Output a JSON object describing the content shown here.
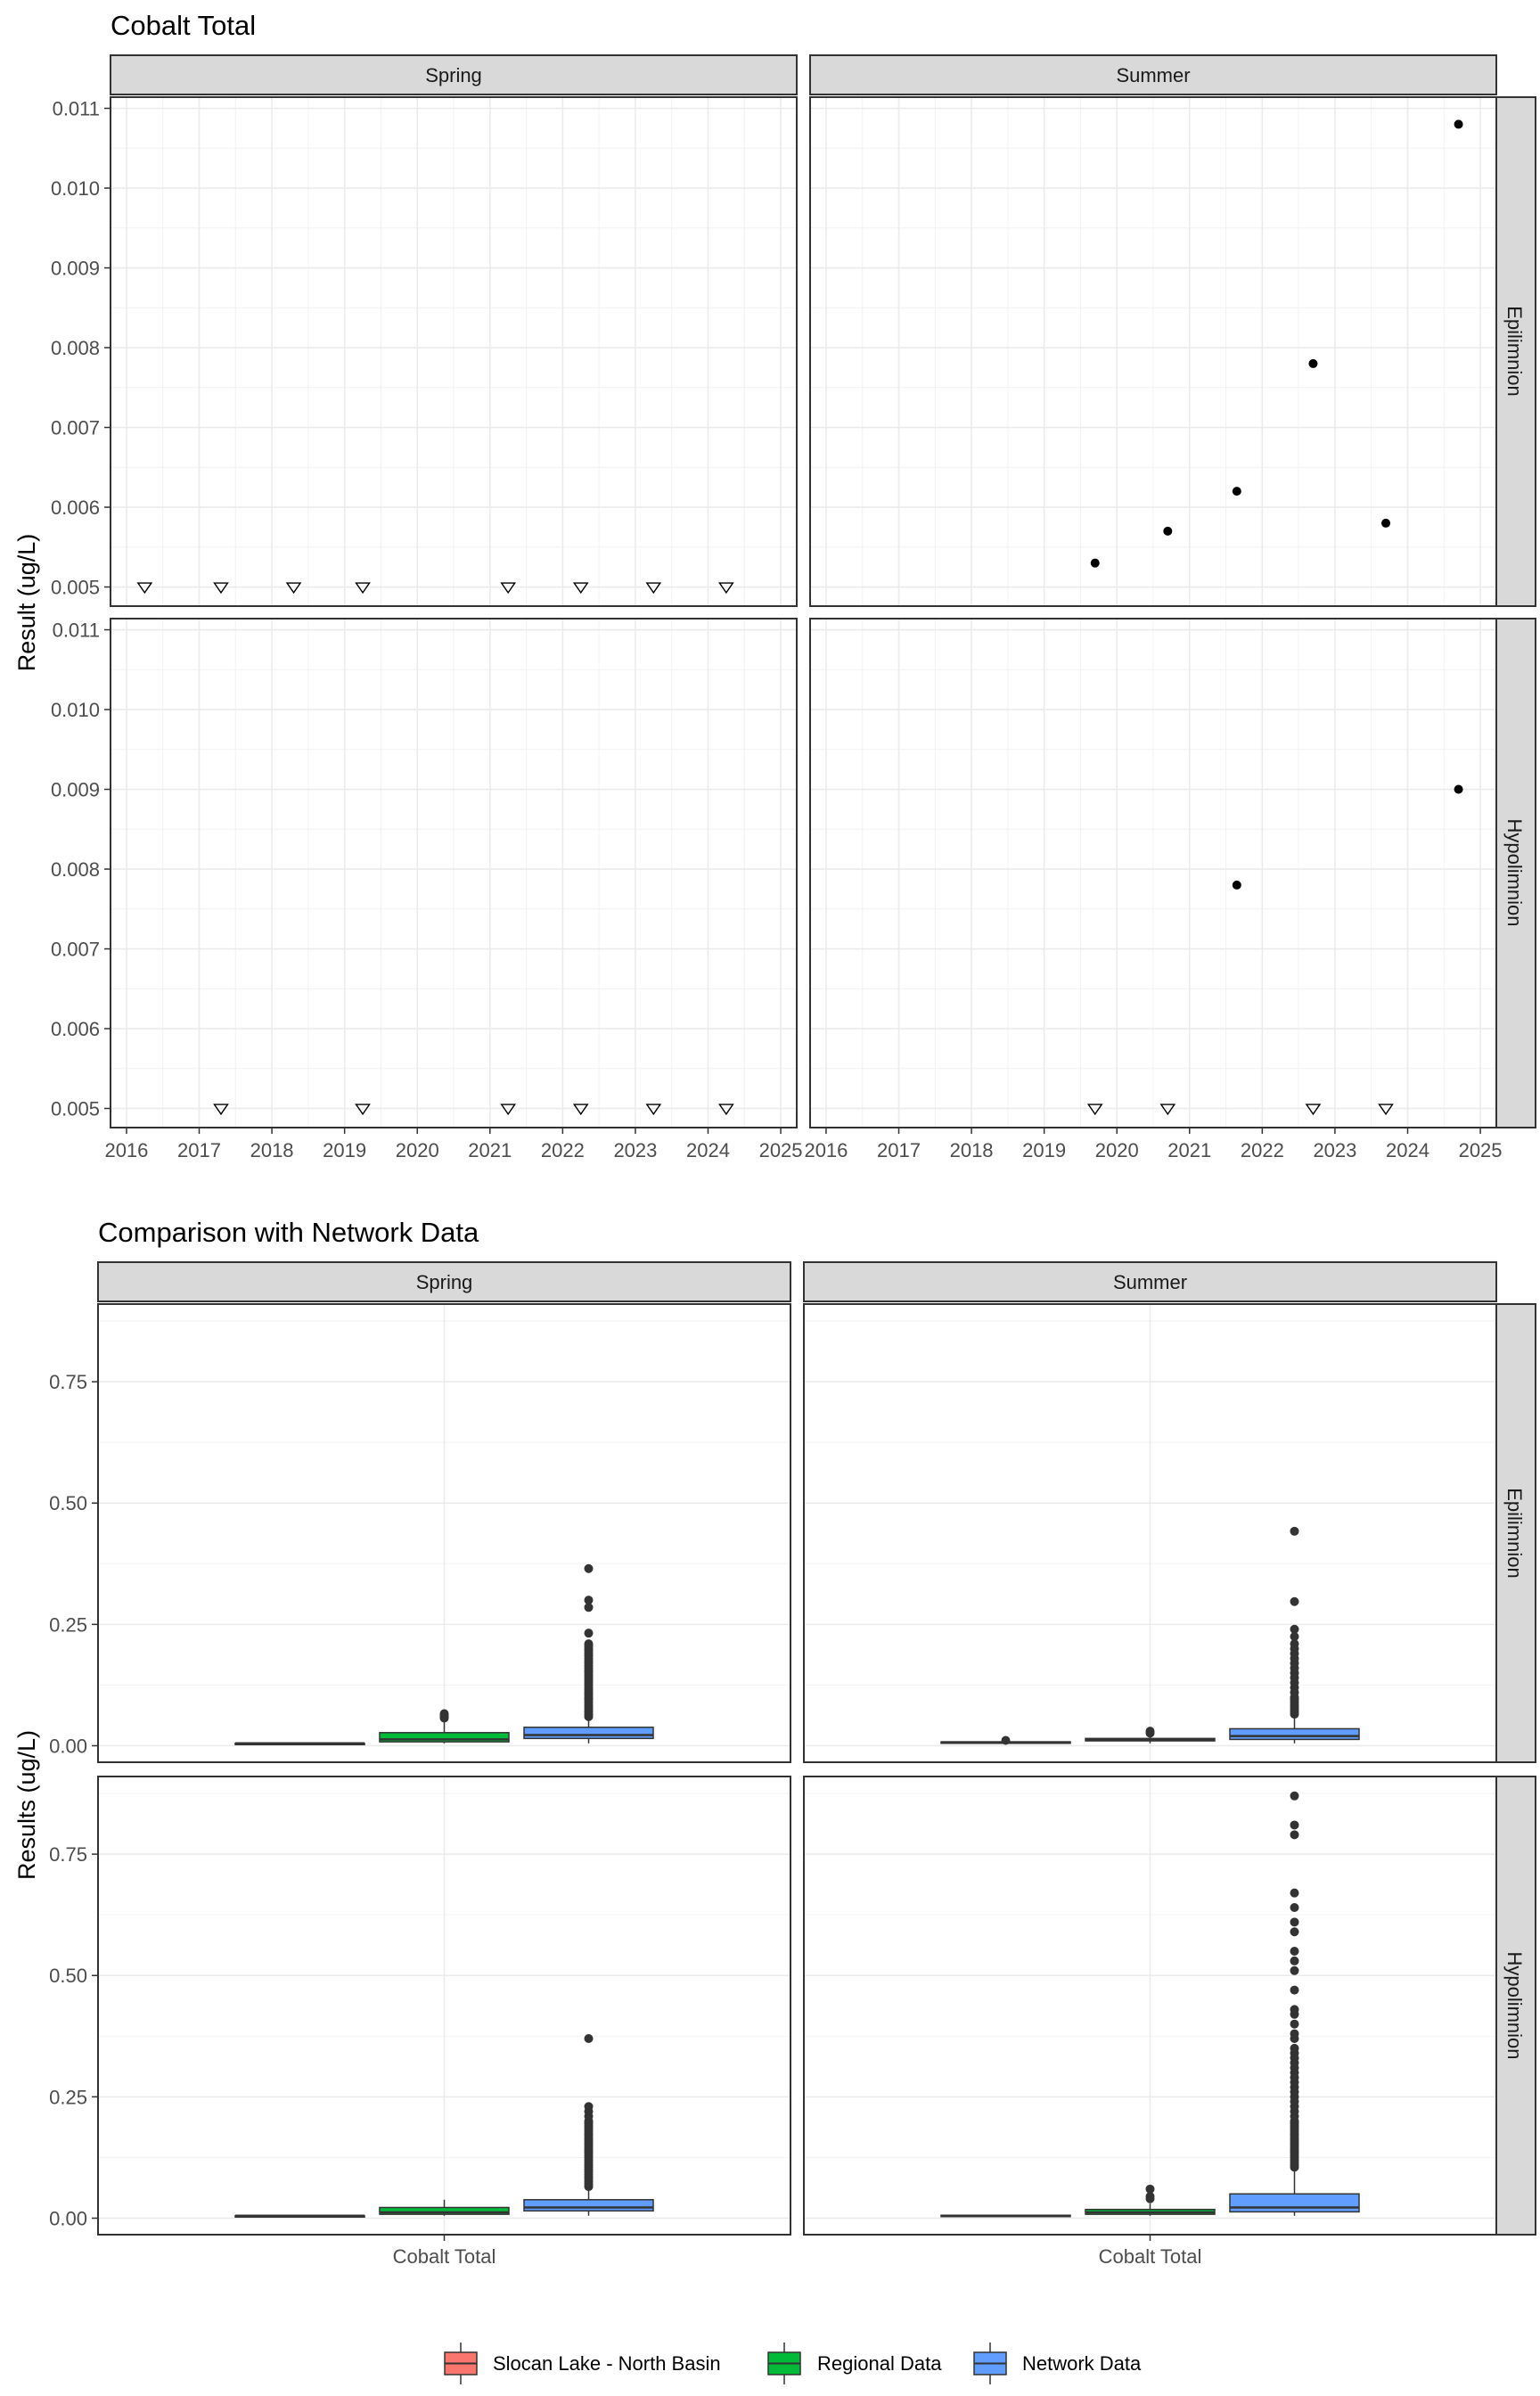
{
  "chart_data": [
    {
      "type": "scatter",
      "title": "Cobalt Total",
      "ylabel": "Result (ug/L)",
      "xlabel": "",
      "x_ticks": [
        "2016",
        "2017",
        "2018",
        "2019",
        "2020",
        "2021",
        "2022",
        "2023",
        "2024",
        "2025"
      ],
      "y_ticks": [
        "0.005",
        "0.006",
        "0.007",
        "0.008",
        "0.009",
        "0.010",
        "0.011"
      ],
      "xlim": [
        2015.78,
        2025.22
      ],
      "ylim": [
        0.00476,
        0.01114
      ],
      "columns": [
        "Spring",
        "Summer"
      ],
      "rows": [
        "Epilimnion",
        "Hypolimnion"
      ],
      "grid": true,
      "marker_legend": {
        "detected": "filled circle",
        "below_detection_limit": "open triangle"
      },
      "panels": [
        {
          "column": "Spring",
          "row": "Epilimnion",
          "detected": [],
          "below_detection_limit": [
            {
              "x": 2016.25,
              "y": 0.005
            },
            {
              "x": 2017.3,
              "y": 0.005
            },
            {
              "x": 2018.3,
              "y": 0.005
            },
            {
              "x": 2019.25,
              "y": 0.005
            },
            {
              "x": 2021.25,
              "y": 0.005
            },
            {
              "x": 2022.25,
              "y": 0.005
            },
            {
              "x": 2023.25,
              "y": 0.005
            },
            {
              "x": 2024.25,
              "y": 0.005
            }
          ]
        },
        {
          "column": "Summer",
          "row": "Epilimnion",
          "detected": [
            {
              "x": 2019.7,
              "y": 0.0053
            },
            {
              "x": 2020.7,
              "y": 0.0057
            },
            {
              "x": 2021.65,
              "y": 0.0062
            },
            {
              "x": 2022.7,
              "y": 0.0078
            },
            {
              "x": 2023.7,
              "y": 0.0058
            },
            {
              "x": 2024.7,
              "y": 0.0108
            }
          ],
          "below_detection_limit": []
        },
        {
          "column": "Spring",
          "row": "Hypolimnion",
          "detected": [],
          "below_detection_limit": [
            {
              "x": 2017.3,
              "y": 0.005
            },
            {
              "x": 2019.25,
              "y": 0.005
            },
            {
              "x": 2021.25,
              "y": 0.005
            },
            {
              "x": 2022.25,
              "y": 0.005
            },
            {
              "x": 2023.25,
              "y": 0.005
            },
            {
              "x": 2024.25,
              "y": 0.005
            }
          ]
        },
        {
          "column": "Summer",
          "row": "Hypolimnion",
          "detected": [
            {
              "x": 2021.65,
              "y": 0.0078
            },
            {
              "x": 2024.7,
              "y": 0.009
            }
          ],
          "below_detection_limit": [
            {
              "x": 2019.7,
              "y": 0.005
            },
            {
              "x": 2020.7,
              "y": 0.005
            },
            {
              "x": 2022.7,
              "y": 0.005
            },
            {
              "x": 2023.7,
              "y": 0.005
            }
          ]
        }
      ]
    },
    {
      "type": "box",
      "title": "Comparison with Network Data",
      "ylabel": "Results (ug/L)",
      "xlabel": "",
      "categories": [
        "Cobalt Total"
      ],
      "y_ticks": [
        "0.00",
        "0.25",
        "0.50",
        "0.75"
      ],
      "ylim": [
        -0.034,
        0.91
      ],
      "columns": [
        "Spring",
        "Summer"
      ],
      "rows": [
        "Epilimnion",
        "Hypolimnion"
      ],
      "grid": true,
      "legend_position": "bottom",
      "series": [
        {
          "name": "Slocan Lake - North Basin",
          "color": "#F8766D"
        },
        {
          "name": "Regional Data",
          "color": "#00BA38"
        },
        {
          "name": "Network Data",
          "color": "#619CFF"
        }
      ],
      "panels": [
        {
          "column": "Spring",
          "row": "Epilimnion",
          "boxes": [
            {
              "series": "Slocan Lake - North Basin",
              "min": 0.005,
              "q1": 0.005,
              "median": 0.005,
              "q3": 0.005,
              "max": 0.005,
              "outliers": []
            },
            {
              "series": "Regional Data",
              "min": 0.005,
              "q1": 0.008,
              "median": 0.013,
              "q3": 0.027,
              "max": 0.055,
              "outliers": [
                0.057,
                0.06,
                0.063,
                0.066
              ]
            },
            {
              "series": "Network Data",
              "min": 0.005,
              "q1": 0.015,
              "median": 0.022,
              "q3": 0.038,
              "max": 0.06,
              "outliers": [
                0.06,
                0.065,
                0.07,
                0.075,
                0.08,
                0.085,
                0.09,
                0.095,
                0.1,
                0.105,
                0.11,
                0.115,
                0.12,
                0.125,
                0.13,
                0.135,
                0.14,
                0.145,
                0.15,
                0.155,
                0.16,
                0.165,
                0.17,
                0.175,
                0.18,
                0.185,
                0.19,
                0.195,
                0.2,
                0.205,
                0.21,
                0.232,
                0.285,
                0.3,
                0.365
              ]
            }
          ]
        },
        {
          "column": "Summer",
          "row": "Epilimnion",
          "boxes": [
            {
              "series": "Slocan Lake - North Basin",
              "min": 0.005,
              "q1": 0.005,
              "median": 0.007,
              "q3": 0.008,
              "max": 0.009,
              "outliers": [
                0.011
              ]
            },
            {
              "series": "Regional Data",
              "min": 0.005,
              "q1": 0.01,
              "median": 0.012,
              "q3": 0.015,
              "max": 0.02,
              "outliers": [
                0.026,
                0.03
              ]
            },
            {
              "series": "Network Data",
              "min": 0.005,
              "q1": 0.013,
              "median": 0.02,
              "q3": 0.035,
              "max": 0.06,
              "outliers": [
                0.065,
                0.07,
                0.075,
                0.08,
                0.085,
                0.09,
                0.095,
                0.1,
                0.11,
                0.12,
                0.13,
                0.14,
                0.15,
                0.16,
                0.17,
                0.18,
                0.19,
                0.2,
                0.21,
                0.225,
                0.24,
                0.297,
                0.442
              ]
            }
          ]
        },
        {
          "column": "Spring",
          "row": "Hypolimnion",
          "boxes": [
            {
              "series": "Slocan Lake - North Basin",
              "min": 0.005,
              "q1": 0.005,
              "median": 0.005,
              "q3": 0.005,
              "max": 0.005,
              "outliers": []
            },
            {
              "series": "Regional Data",
              "min": 0.005,
              "q1": 0.008,
              "median": 0.012,
              "q3": 0.022,
              "max": 0.038,
              "outliers": []
            },
            {
              "series": "Network Data",
              "min": 0.005,
              "q1": 0.015,
              "median": 0.022,
              "q3": 0.038,
              "max": 0.06,
              "outliers": [
                0.065,
                0.07,
                0.075,
                0.08,
                0.085,
                0.09,
                0.095,
                0.1,
                0.105,
                0.11,
                0.115,
                0.12,
                0.125,
                0.13,
                0.135,
                0.14,
                0.145,
                0.15,
                0.155,
                0.16,
                0.165,
                0.17,
                0.175,
                0.18,
                0.185,
                0.19,
                0.195,
                0.2,
                0.21,
                0.22,
                0.23,
                0.37
              ]
            }
          ]
        },
        {
          "column": "Summer",
          "row": "Hypolimnion",
          "boxes": [
            {
              "series": "Slocan Lake - North Basin",
              "min": 0.005,
              "q1": 0.005,
              "median": 0.005,
              "q3": 0.006,
              "max": 0.007,
              "outliers": []
            },
            {
              "series": "Regional Data",
              "min": 0.005,
              "q1": 0.008,
              "median": 0.012,
              "q3": 0.018,
              "max": 0.03,
              "outliers": [
                0.04,
                0.045,
                0.06
              ]
            },
            {
              "series": "Network Data",
              "min": 0.005,
              "q1": 0.013,
              "median": 0.022,
              "q3": 0.05,
              "max": 0.1,
              "outliers": [
                0.105,
                0.11,
                0.115,
                0.12,
                0.125,
                0.13,
                0.135,
                0.14,
                0.145,
                0.15,
                0.155,
                0.16,
                0.165,
                0.17,
                0.175,
                0.18,
                0.185,
                0.19,
                0.195,
                0.2,
                0.21,
                0.22,
                0.23,
                0.24,
                0.25,
                0.26,
                0.27,
                0.28,
                0.29,
                0.3,
                0.31,
                0.32,
                0.33,
                0.34,
                0.35,
                0.37,
                0.38,
                0.4,
                0.42,
                0.43,
                0.47,
                0.51,
                0.53,
                0.55,
                0.59,
                0.61,
                0.64,
                0.67,
                0.79,
                0.81,
                0.87
              ]
            }
          ]
        }
      ]
    }
  ]
}
